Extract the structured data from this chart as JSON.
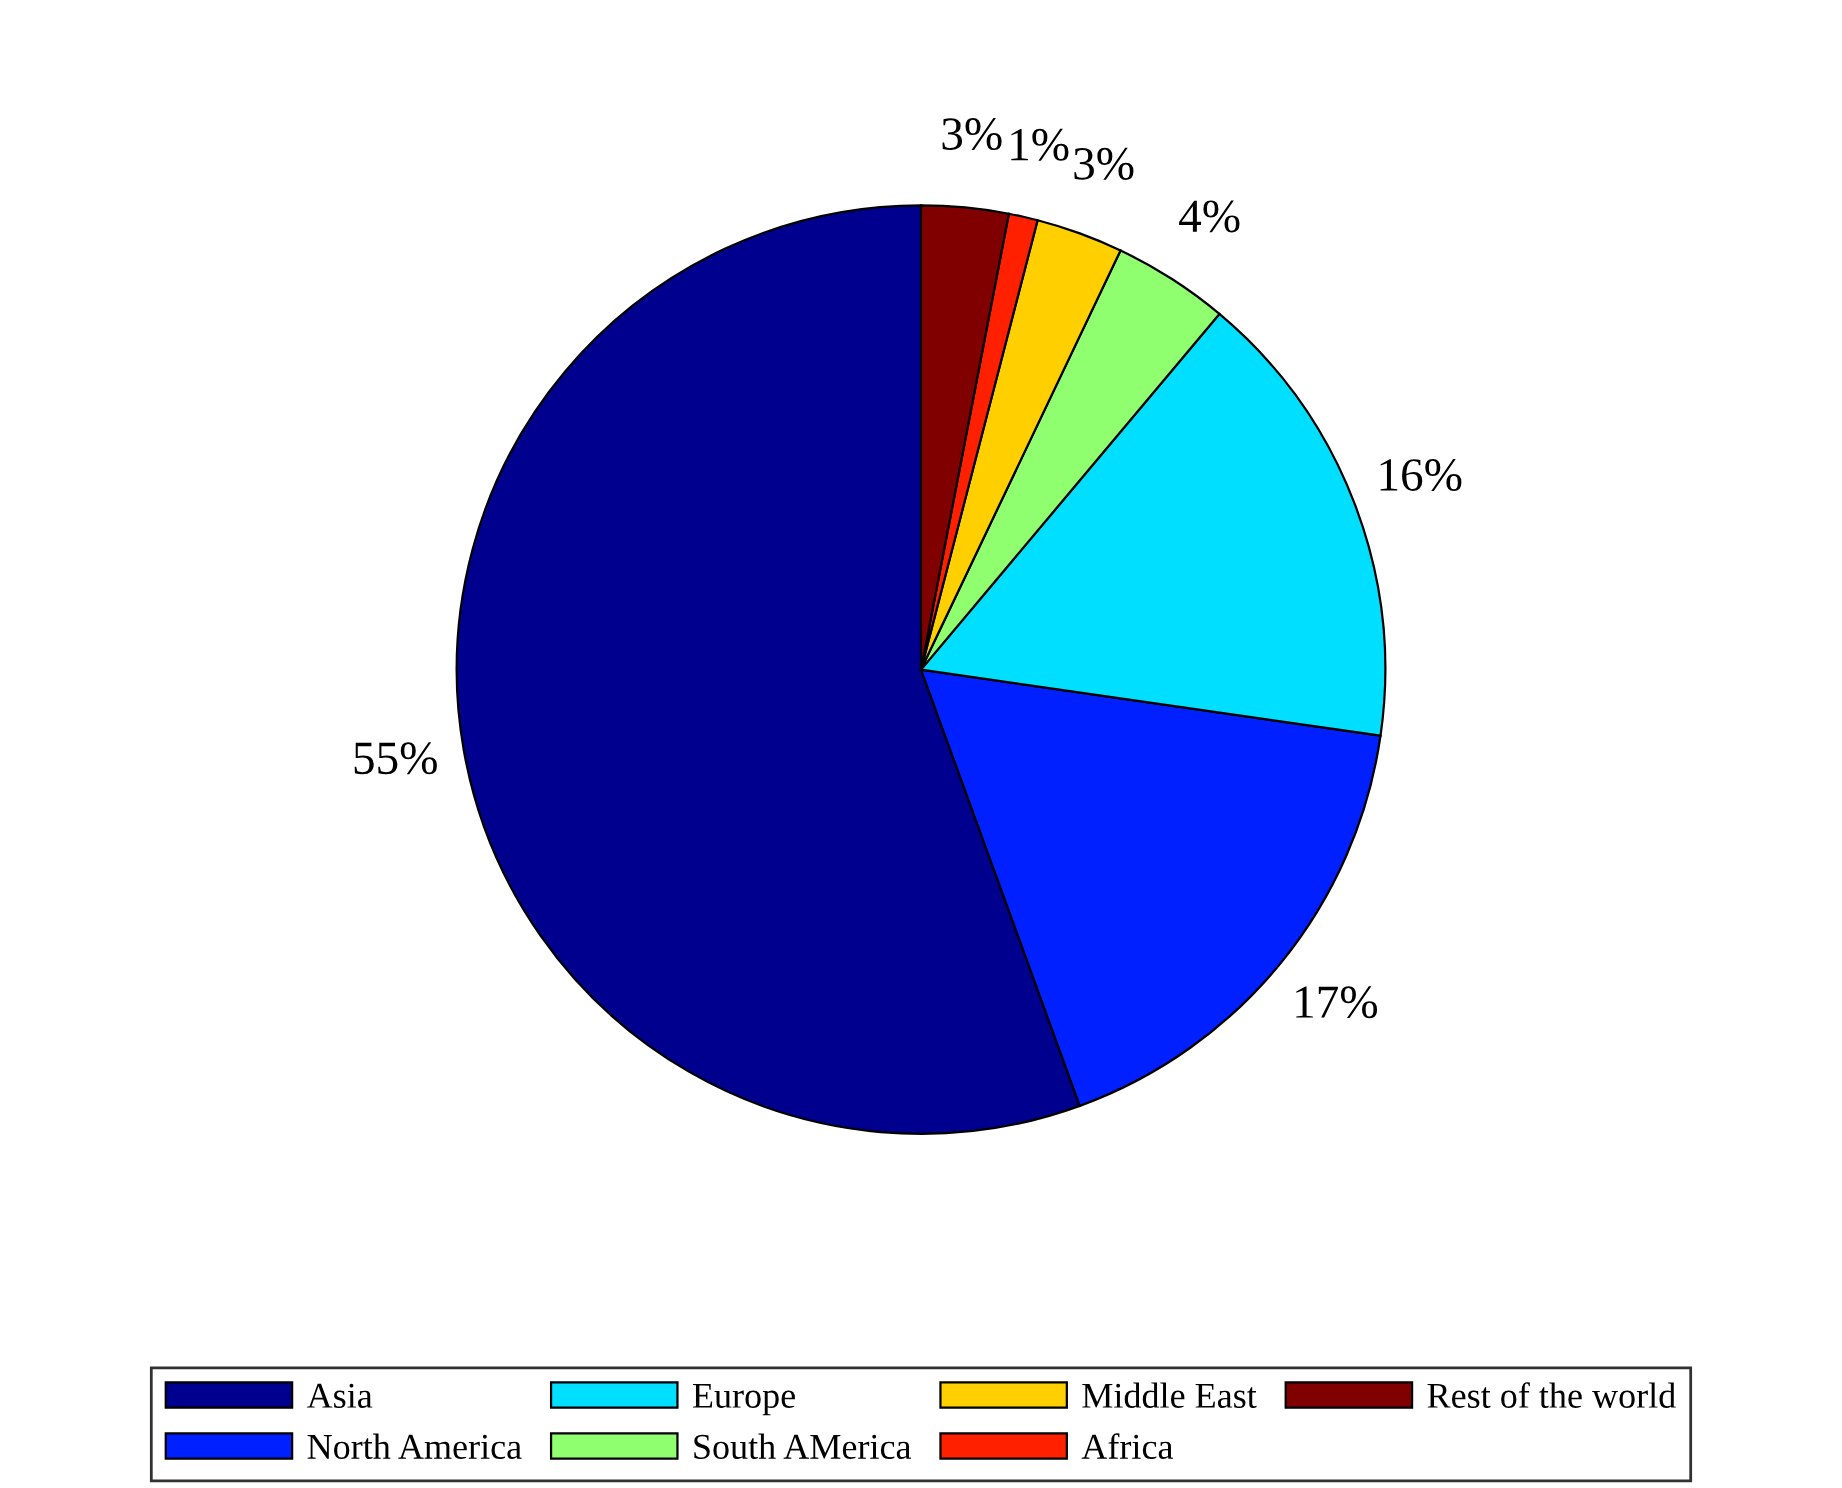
{
  "chart_data": {
    "type": "pie",
    "categories": [
      "Asia",
      "North America",
      "Europe",
      "South AMerica",
      "Middle East",
      "Africa",
      "Rest of the world"
    ],
    "values": [
      55,
      17,
      16,
      4,
      3,
      1,
      3
    ],
    "value_labels": [
      "55%",
      "17%",
      "16%",
      "4%",
      "3%",
      "1%",
      "3%"
    ],
    "colors": [
      "#00008f",
      "#0020ff",
      "#00dfff",
      "#8fff70",
      "#ffcf00",
      "#ff2000",
      "#800000"
    ],
    "legend": "bottom"
  }
}
